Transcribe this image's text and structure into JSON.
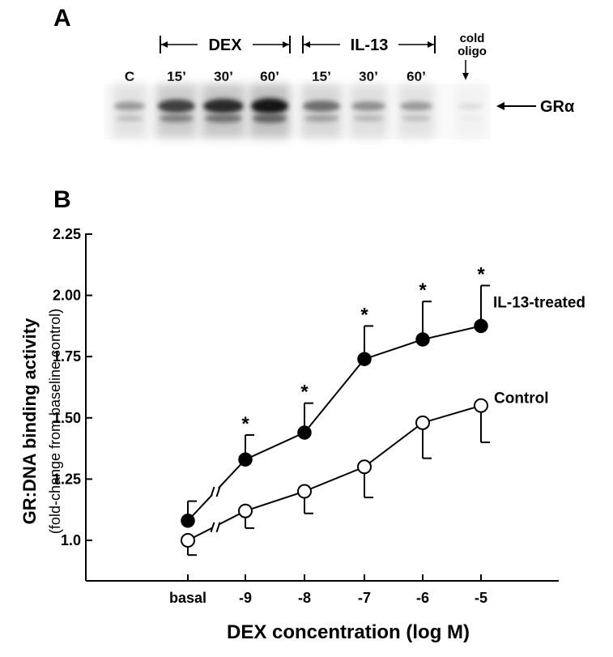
{
  "panel_a": {
    "label": "A",
    "group_labels": [
      "DEX",
      "IL-13"
    ],
    "lane_labels": [
      "C",
      "15’",
      "30’",
      "60’",
      "15’",
      "30’",
      "60’"
    ],
    "cold_oligo_label": [
      "cold",
      "oligo"
    ],
    "band_label": "GRα",
    "band_intensity": [
      0.35,
      0.75,
      0.85,
      0.95,
      0.55,
      0.4,
      0.35,
      0.05
    ]
  },
  "chart_data": {
    "panel_label": "B",
    "type": "line",
    "categories": [
      "basal",
      "-9",
      "-8",
      "-7",
      "-6",
      "-5"
    ],
    "xlabel": "DEX concentration (log M)",
    "ylabel": "GR:DNA binding activity",
    "ylabel_sub": "(fold-change from baseline control)",
    "ylim": [
      0.9,
      2.25
    ],
    "yticks": [
      "1.0",
      "1.25",
      "1.50",
      "1.75",
      "2.00",
      "2.25"
    ],
    "ytick_values": [
      1.0,
      1.25,
      1.5,
      1.75,
      2.0,
      2.25
    ],
    "axis_break_between": [
      "basal",
      "-9"
    ],
    "series": [
      {
        "name": "IL-13-treated",
        "marker": "filled",
        "values": [
          1.08,
          1.33,
          1.44,
          1.74,
          1.82,
          1.875
        ],
        "error_up": [
          0.08,
          0.1,
          0.12,
          0.135,
          0.155,
          0.165
        ],
        "significance": [
          "",
          "*",
          "*",
          "*",
          "*",
          "*"
        ]
      },
      {
        "name": "Control",
        "marker": "open",
        "values": [
          1.0,
          1.12,
          1.2,
          1.3,
          1.48,
          1.55
        ],
        "error_down": [
          0.06,
          0.07,
          0.09,
          0.125,
          0.145,
          0.15
        ]
      }
    ]
  }
}
